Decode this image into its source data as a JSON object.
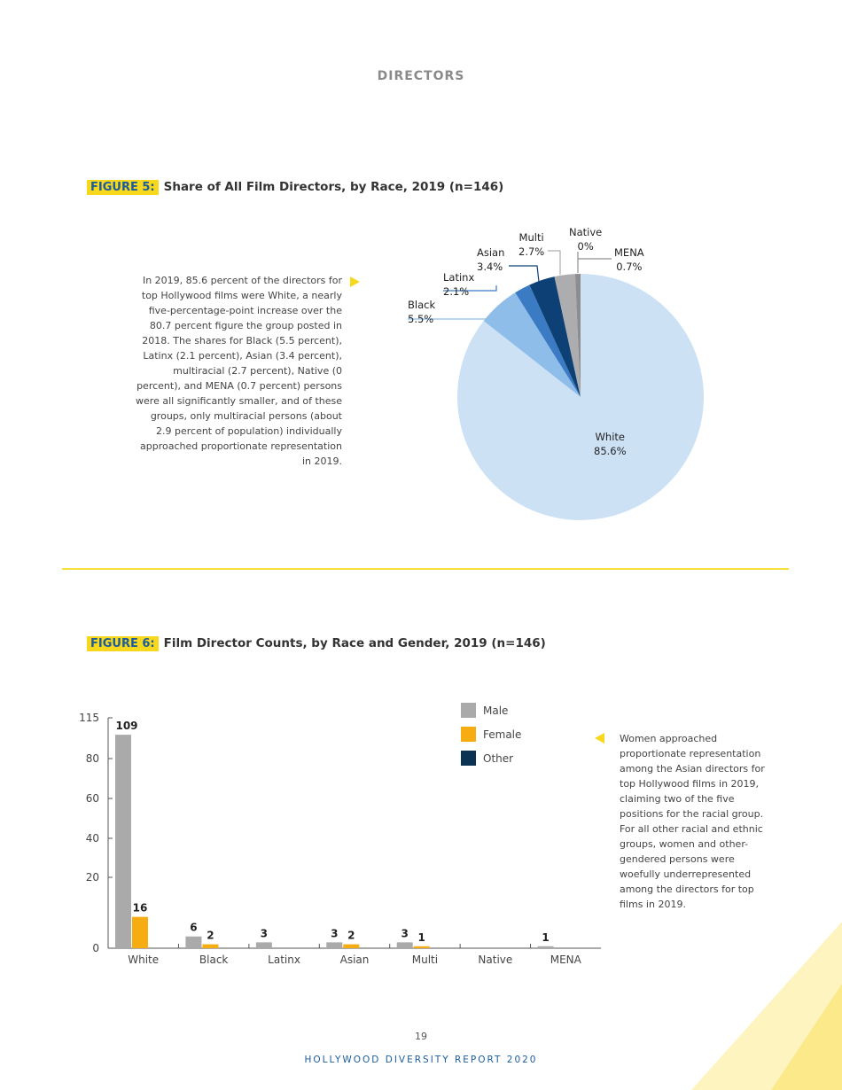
{
  "section_title": "DIRECTORS",
  "figure5": {
    "tag": "FIGURE 5:",
    "title": "Share of All Film Directors, by Race, 2019 (n=146)",
    "note": "In 2019, 85.6 percent of the directors for top Hollywood films were White, a nearly five-percentage-point increase over the 80.7 percent figure the group posted in 2018.  The shares for Black (5.5 percent), Latinx (2.1 percent), Asian (3.4 percent), multiracial (2.7 percent), Native (0 percent), and MENA (0.7 percent) persons were all significantly smaller, and of these groups, only multiracial persons (about 2.9 percent of population) individually approached proportionate representation in 2019."
  },
  "figure6": {
    "tag": "FIGURE 6:",
    "title": "Film Director Counts, by Race and Gender, 2019 (n=146)",
    "note": "Women approached proportionate representation among the Asian directors for top Hollywood films in 2019, claiming two of the five positions for the racial group. For all other racial and ethnic groups, women and other-gendered persons were woefully underrepresented among the directors for top films in 2019."
  },
  "chart_data": [
    {
      "type": "pie",
      "slices": [
        {
          "label": "White",
          "value": 85.6,
          "display": "85.6%",
          "color": "#cde1f5"
        },
        {
          "label": "Black",
          "value": 5.5,
          "display": "5.5%",
          "color": "#8dbde8"
        },
        {
          "label": "Latinx",
          "value": 2.1,
          "display": "2.1%",
          "color": "#3a7bc3"
        },
        {
          "label": "Asian",
          "value": 3.4,
          "display": "3.4%",
          "color": "#0d4075"
        },
        {
          "label": "Multi",
          "value": 2.7,
          "display": "2.7%",
          "color": "#adacaf"
        },
        {
          "label": "Native",
          "value": 0,
          "display": "0%",
          "color": "#c8c8c8"
        },
        {
          "label": "MENA",
          "value": 0.7,
          "display": "0.7%",
          "color": "#8d8d8f"
        }
      ]
    },
    {
      "type": "bar",
      "categories": [
        "White",
        "Black",
        "Latinx",
        "Asian",
        "Multi",
        "Native",
        "MENA"
      ],
      "series": [
        {
          "name": "Male",
          "color": "#aaaaaa",
          "values": [
            109,
            6,
            3,
            3,
            3,
            0,
            1
          ]
        },
        {
          "name": "Female",
          "color": "#f7ac12",
          "values": [
            16,
            2,
            0,
            2,
            1,
            0,
            0
          ]
        },
        {
          "name": "Other",
          "color": "#0c3253",
          "values": [
            0,
            0,
            0,
            0,
            0,
            0,
            0
          ]
        }
      ],
      "yticks": [
        0,
        20,
        40,
        60,
        80,
        115
      ],
      "ylim": [
        0,
        115
      ],
      "legend": "top-right"
    }
  ],
  "footer": {
    "page_number": "19",
    "report_title": "HOLLYWOOD DIVERSITY REPORT 2020"
  }
}
